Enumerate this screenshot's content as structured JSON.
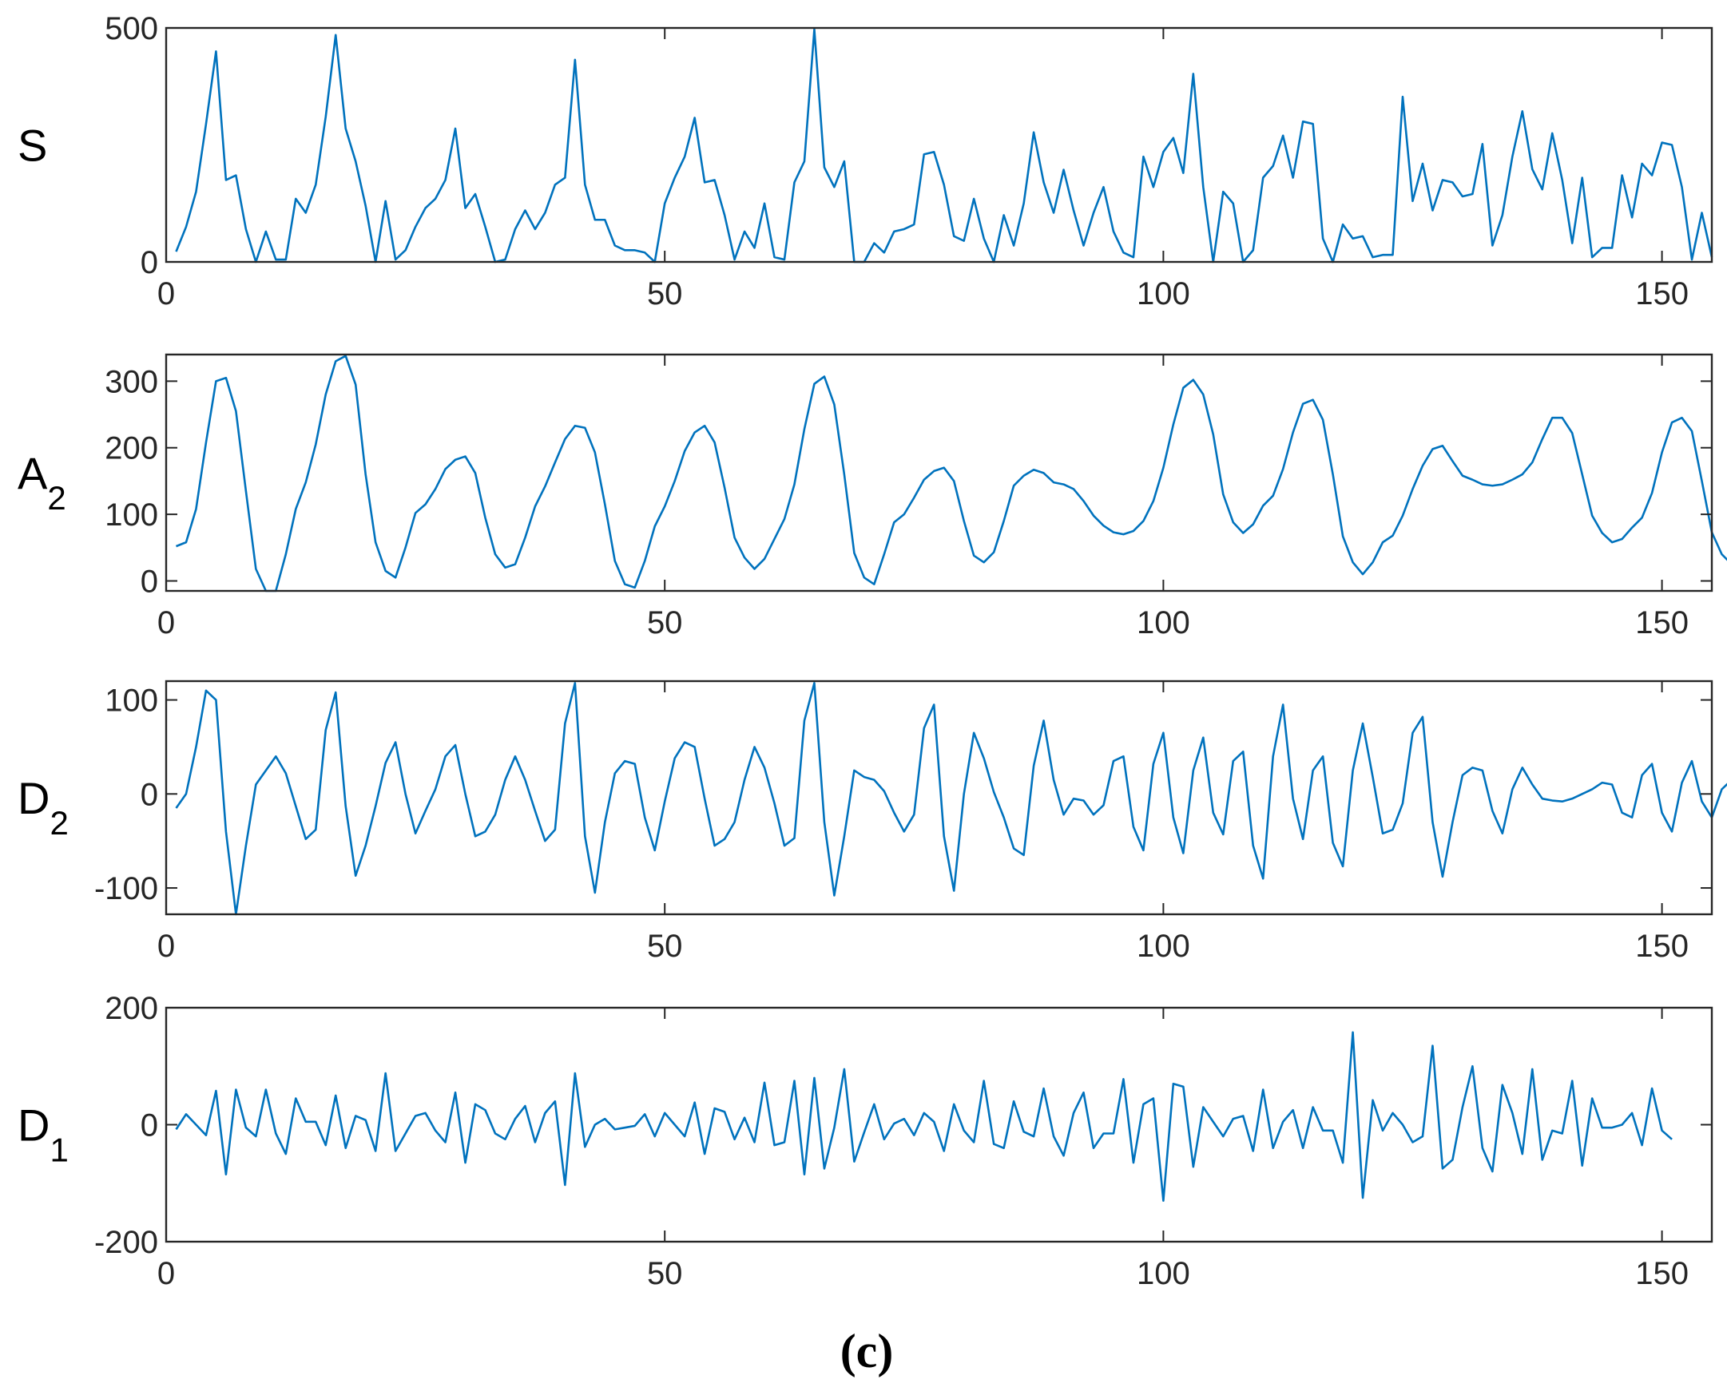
{
  "caption": "(c)",
  "line_color": "#0072BD",
  "chart_data": [
    {
      "type": "line",
      "ylabel_main": "S",
      "ylabel_sub": "",
      "xlim": [
        0,
        155
      ],
      "ylim": [
        0,
        500
      ],
      "xticks": [
        0,
        50,
        100,
        150
      ],
      "yticks": [
        0,
        500
      ],
      "grid": false,
      "x_start": 1,
      "values": [
        22,
        75,
        150,
        295,
        450,
        175,
        185,
        70,
        0,
        65,
        5,
        5,
        135,
        105,
        165,
        310,
        485,
        285,
        215,
        120,
        0,
        130,
        5,
        25,
        75,
        115,
        135,
        175,
        285,
        115,
        145,
        75,
        0,
        5,
        70,
        110,
        70,
        105,
        165,
        180,
        432,
        165,
        90,
        90,
        35,
        25,
        25,
        20,
        0,
        125,
        180,
        225,
        308,
        170,
        175,
        100,
        5,
        65,
        30,
        125,
        10,
        5,
        170,
        215,
        497,
        202,
        160,
        215,
        0,
        0,
        40,
        20,
        65,
        70,
        80,
        230,
        235,
        165,
        55,
        45,
        135,
        50,
        0,
        100,
        35,
        125,
        277,
        170,
        105,
        197,
        110,
        35,
        105,
        160,
        65,
        20,
        10,
        225,
        160,
        235,
        265,
        190,
        402,
        160,
        0,
        150,
        125,
        0,
        25,
        180,
        205,
        270,
        180,
        300,
        295,
        50,
        0,
        80,
        50,
        55,
        10,
        15,
        15,
        353,
        130,
        210,
        110,
        175,
        170,
        140,
        145,
        252,
        35,
        100,
        225,
        322,
        198,
        155,
        275,
        175,
        40,
        180,
        10,
        30,
        30,
        185,
        95,
        210,
        185,
        255,
        250,
        160,
        5,
        105,
        10
      ]
    },
    {
      "type": "line",
      "ylabel_main": "A",
      "ylabel_sub": "2",
      "xlim": [
        0,
        155
      ],
      "ylim": [
        -15,
        340
      ],
      "xticks": [
        0,
        50,
        100,
        150
      ],
      "yticks": [
        0,
        100,
        200,
        300
      ],
      "grid": false,
      "x_start": 1,
      "values": [
        52,
        58,
        108,
        208,
        300,
        305,
        255,
        135,
        18,
        -15,
        -15,
        40,
        108,
        148,
        205,
        280,
        330,
        338,
        295,
        160,
        58,
        15,
        5,
        50,
        102,
        115,
        138,
        168,
        182,
        187,
        162,
        95,
        40,
        20,
        25,
        65,
        112,
        142,
        178,
        213,
        233,
        230,
        193,
        115,
        30,
        -5,
        -10,
        30,
        82,
        112,
        150,
        195,
        223,
        233,
        208,
        140,
        65,
        35,
        18,
        33,
        63,
        93,
        145,
        228,
        296,
        307,
        265,
        160,
        42,
        5,
        -5,
        40,
        88,
        100,
        125,
        152,
        165,
        170,
        150,
        90,
        38,
        28,
        43,
        90,
        143,
        158,
        167,
        162,
        148,
        145,
        138,
        120,
        98,
        83,
        73,
        70,
        75,
        90,
        120,
        170,
        235,
        290,
        302,
        280,
        220,
        130,
        88,
        72,
        85,
        113,
        128,
        168,
        223,
        266,
        272,
        242,
        160,
        67,
        28,
        10,
        28,
        58,
        68,
        98,
        138,
        173,
        198,
        203,
        180,
        158,
        152,
        145,
        143,
        145,
        152,
        160,
        178,
        213,
        245,
        245,
        222,
        160,
        98,
        72,
        58,
        63,
        80,
        95,
        132,
        193,
        238,
        245,
        225,
        150,
        73,
        40,
        25
      ]
    },
    {
      "type": "line",
      "ylabel_main": "D",
      "ylabel_sub": "2",
      "xlim": [
        0,
        155
      ],
      "ylim": [
        -128,
        120
      ],
      "xticks": [
        0,
        50,
        100,
        150
      ],
      "yticks": [
        -100,
        0,
        100
      ],
      "grid": false,
      "x_start": 1,
      "values": [
        -15,
        0,
        50,
        110,
        100,
        -40,
        -128,
        -55,
        10,
        25,
        40,
        22,
        -13,
        -48,
        -38,
        68,
        108,
        -13,
        -87,
        -55,
        -13,
        33,
        55,
        0,
        -42,
        -18,
        5,
        40,
        52,
        0,
        -45,
        -40,
        -22,
        15,
        40,
        15,
        -18,
        -50,
        -38,
        75,
        118,
        -45,
        -105,
        -30,
        22,
        35,
        32,
        -25,
        -60,
        -8,
        38,
        55,
        50,
        -5,
        -55,
        -48,
        -30,
        15,
        50,
        28,
        -10,
        -55,
        -47,
        78,
        118,
        -30,
        -108,
        -45,
        25,
        18,
        15,
        3,
        -20,
        -40,
        -22,
        70,
        95,
        -45,
        -103,
        0,
        65,
        38,
        2,
        -25,
        -58,
        -65,
        30,
        78,
        15,
        -22,
        -5,
        -7,
        -22,
        -12,
        35,
        40,
        -35,
        -60,
        32,
        65,
        -25,
        -63,
        25,
        60,
        -20,
        -43,
        35,
        45,
        -55,
        -90,
        40,
        95,
        -5,
        -48,
        25,
        40,
        -52,
        -77,
        25,
        75,
        18,
        -42,
        -38,
        -10,
        65,
        82,
        -30,
        -88,
        -30,
        20,
        28,
        25,
        -18,
        -42,
        5,
        28,
        10,
        -5,
        -7,
        -8,
        -5,
        0,
        5,
        12,
        10,
        -20,
        -25,
        20,
        32,
        -20,
        -40,
        12,
        35,
        -8,
        -25,
        5,
        15
      ]
    },
    {
      "type": "line",
      "ylabel_main": "D",
      "ylabel_sub": "1",
      "xlim": [
        0,
        155
      ],
      "ylim": [
        -200,
        200
      ],
      "xticks": [
        0,
        50,
        100,
        150
      ],
      "yticks": [
        -200,
        0,
        200
      ],
      "grid": false,
      "x_start": 1,
      "values": [
        -8,
        18,
        0,
        -18,
        58,
        -85,
        60,
        -5,
        -20,
        60,
        -15,
        -50,
        45,
        5,
        5,
        -35,
        50,
        -40,
        15,
        8,
        -45,
        88,
        -45,
        -15,
        15,
        20,
        -10,
        -30,
        55,
        -65,
        35,
        25,
        -15,
        -25,
        10,
        32,
        -30,
        20,
        40,
        -103,
        88,
        -38,
        0,
        10,
        -8,
        -5,
        -2,
        18,
        -20,
        20,
        0,
        -20,
        38,
        -50,
        28,
        22,
        -25,
        12,
        -30,
        72,
        -35,
        -30,
        75,
        -85,
        80,
        -75,
        -5,
        95,
        -63,
        -13,
        35,
        -25,
        2,
        10,
        -18,
        20,
        5,
        -45,
        35,
        -10,
        -30,
        75,
        -33,
        -40,
        40,
        -12,
        -20,
        62,
        -20,
        -53,
        20,
        55,
        -40,
        -15,
        -15,
        78,
        -65,
        35,
        45,
        -130,
        70,
        65,
        -72,
        30,
        5,
        -20,
        10,
        15,
        -45,
        60,
        -40,
        5,
        25,
        -40,
        30,
        -10,
        -10,
        -65,
        158,
        -125,
        42,
        -10,
        20,
        0,
        -30,
        -20,
        135,
        -75,
        -60,
        30,
        100,
        -40,
        -80,
        68,
        20,
        -50,
        95,
        -60,
        -10,
        -15,
        75,
        -70,
        45,
        -5,
        -5,
        0,
        20,
        -35,
        62,
        -10,
        -25
      ]
    }
  ]
}
